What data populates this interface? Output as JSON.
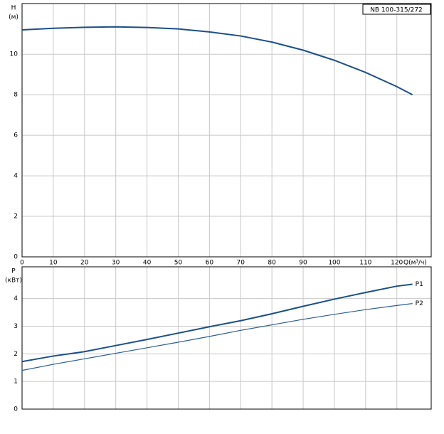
{
  "chart_data": [
    {
      "type": "line",
      "title": "NB 100-315/272",
      "y_label": "H",
      "y_unit": "(м)",
      "x_label": "Q(м³/ч)",
      "x": [
        0,
        10,
        20,
        30,
        40,
        50,
        60,
        70,
        80,
        90,
        100,
        110,
        120,
        125
      ],
      "series": [
        {
          "color": "#1b4f8a",
          "values": [
            11.2,
            11.28,
            11.33,
            11.35,
            11.32,
            11.25,
            11.1,
            10.9,
            10.6,
            10.2,
            9.7,
            9.1,
            8.4,
            8.0
          ]
        }
      ],
      "xlim": [
        0,
        131
      ],
      "xticks": [
        0,
        10,
        20,
        30,
        40,
        50,
        60,
        70,
        80,
        90,
        100,
        110,
        120
      ],
      "ylim": [
        0,
        12.5
      ],
      "yticks": [
        0,
        2,
        4,
        6,
        8,
        10
      ],
      "grid": true
    },
    {
      "type": "line",
      "y_label": "P",
      "y_unit": "(кВт)",
      "x": [
        0,
        10,
        20,
        30,
        40,
        50,
        60,
        70,
        80,
        90,
        100,
        110,
        120,
        125
      ],
      "series": [
        {
          "name": "P1",
          "color": "#1b4f8a",
          "values": [
            1.72,
            1.92,
            2.08,
            2.3,
            2.52,
            2.75,
            2.98,
            3.2,
            3.45,
            3.72,
            3.98,
            4.22,
            4.45,
            4.52
          ]
        },
        {
          "name": "P2",
          "color": "#2a5d95",
          "values": [
            1.4,
            1.62,
            1.82,
            2.02,
            2.22,
            2.42,
            2.63,
            2.85,
            3.05,
            3.25,
            3.43,
            3.6,
            3.75,
            3.82
          ]
        }
      ],
      "xlim": [
        0,
        131
      ],
      "xticks": [
        0,
        10,
        20,
        30,
        40,
        50,
        60,
        70,
        80,
        90,
        100,
        110,
        120
      ],
      "ylim": [
        0,
        5.15
      ],
      "yticks": [
        0,
        1,
        2,
        3,
        4
      ],
      "grid": true
    }
  ]
}
